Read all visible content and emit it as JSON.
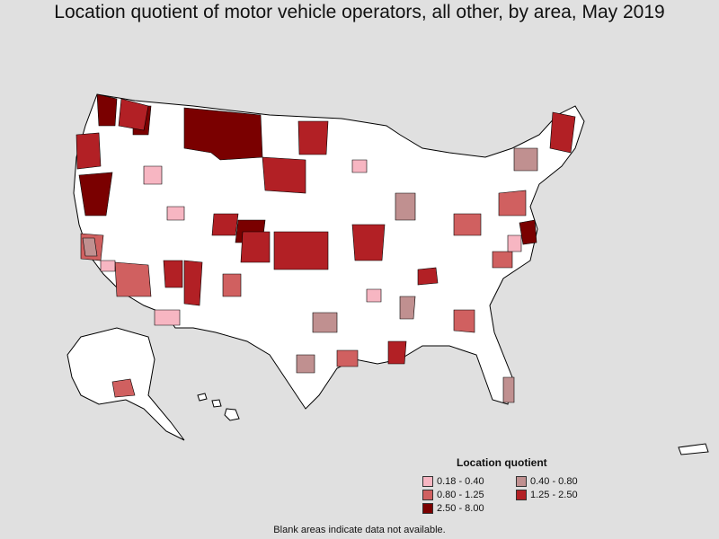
{
  "title": "Location quotient of motor vehicle operators, all other, by area, May 2019",
  "legend": {
    "title": "Location quotient",
    "items": [
      {
        "label": "0.18 - 0.40",
        "color": "#f7b6c2"
      },
      {
        "label": "0.40 - 0.80",
        "color": "#c09090"
      },
      {
        "label": "0.80 - 1.25",
        "color": "#d06060"
      },
      {
        "label": "1.25 - 2.50",
        "color": "#b22025"
      },
      {
        "label": "2.50 - 8.00",
        "color": "#7a0000"
      }
    ]
  },
  "footnote": "Blank areas indicate data not available.",
  "map": {
    "no_data_color": "#ffffff",
    "background_color": "#e0e0e0",
    "boundary_color": "#000000"
  }
}
